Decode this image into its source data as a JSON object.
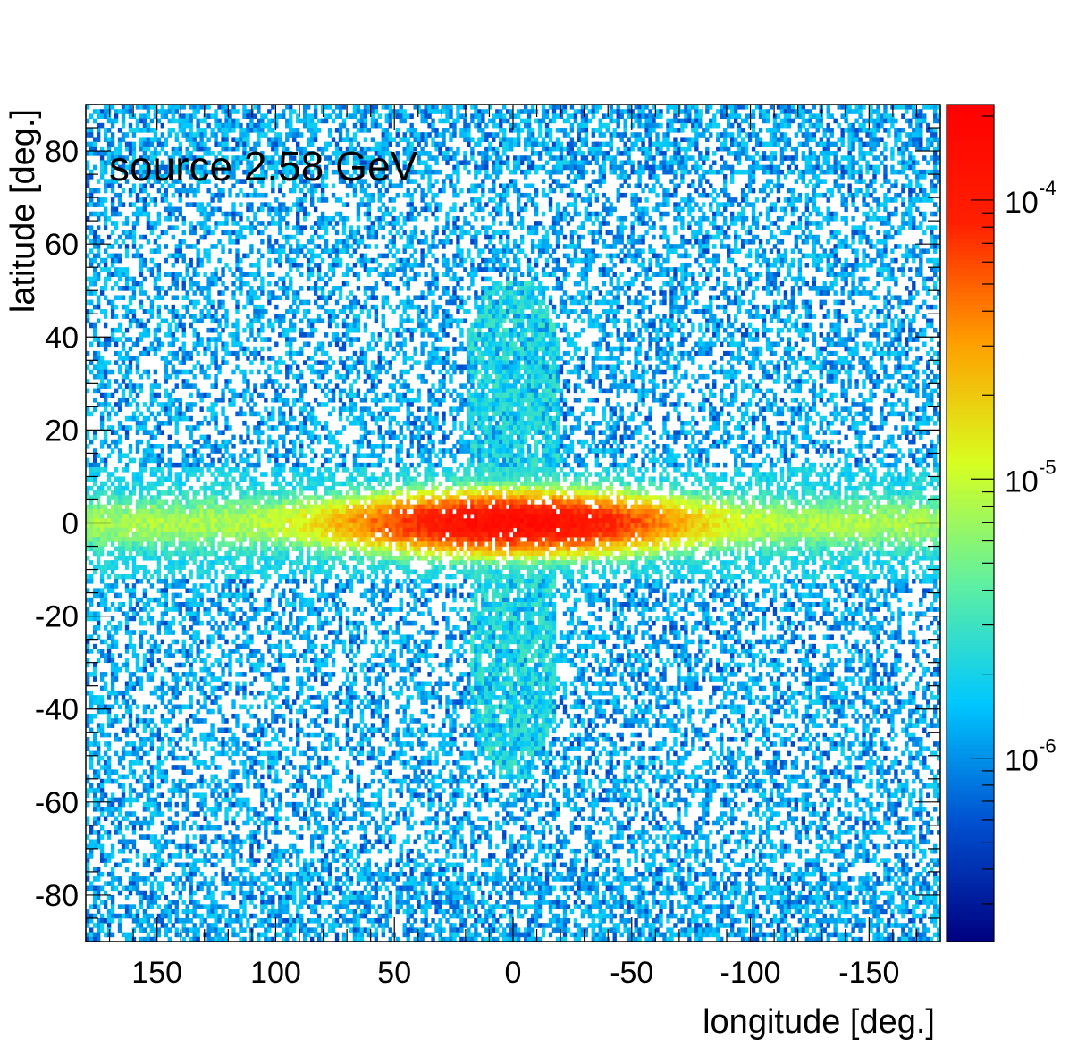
{
  "chart_data": {
    "type": "heatmap",
    "title": "source 2.58 GeV",
    "xlabel": "longitude [deg.]",
    "ylabel": "latitude [deg.]",
    "xlim": [
      180,
      -180
    ],
    "ylim": [
      -90,
      90
    ],
    "x_ticks": [
      150,
      100,
      50,
      0,
      -50,
      -100,
      -150
    ],
    "y_ticks": [
      80,
      60,
      40,
      20,
      0,
      -20,
      -40,
      -60,
      -80
    ],
    "colorbar": {
      "scale": "log",
      "range": [
        2.2e-07,
        0.00022
      ],
      "tick_labels": [
        {
          "value": 0.0001,
          "base": "10",
          "exponent": "-4"
        },
        {
          "value": 1e-05,
          "base": "10",
          "exponent": "-5"
        },
        {
          "value": 1e-06,
          "base": "10",
          "exponent": "-6"
        }
      ],
      "colors": [
        "#000080",
        "#0050d0",
        "#00c8ff",
        "#60f0a0",
        "#d8ff20",
        "#ffa000",
        "#ff2000",
        "#ff0000"
      ]
    },
    "features": [
      {
        "name": "galactic plane",
        "lat_center": 0,
        "lat_halfwidth": 3,
        "lon_range": [
          180,
          -180
        ],
        "peak_value": 0.00015
      },
      {
        "name": "north bubble lobe",
        "lon_center": 0,
        "lon_halfwidth": 20,
        "lat_range": [
          5,
          52
        ],
        "value": 1.5e-06
      },
      {
        "name": "south bubble lobe",
        "lon_center": 0,
        "lon_halfwidth": 18,
        "lat_range": [
          -55,
          -5
        ],
        "value": 1.5e-06
      }
    ],
    "grid": false
  }
}
